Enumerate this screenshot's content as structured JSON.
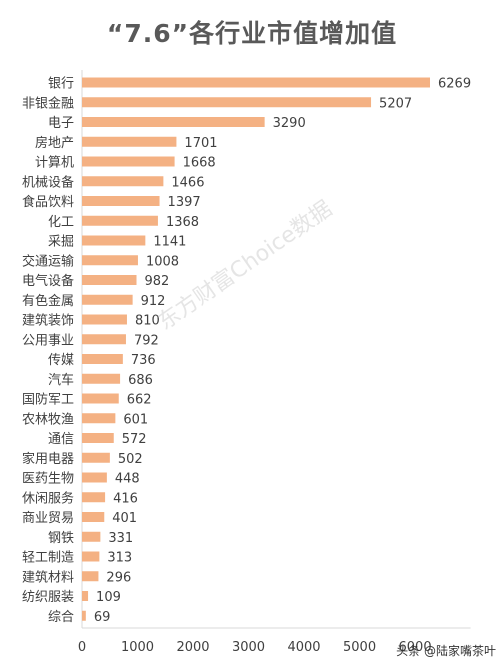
{
  "title": "“7.6”各行业市值增加值",
  "watermark": "东方财富Choice数据",
  "footer": "头条 @陆家嘴茶叶",
  "bar_color": "#f4b183",
  "chart_data": {
    "type": "bar",
    "orientation": "horizontal",
    "title": "“7.6”各行业市值增加值",
    "categories": [
      "银行",
      "非银金融",
      "电子",
      "房地产",
      "计算机",
      "机械设备",
      "食品饮料",
      "化工",
      "采掘",
      "交通运输",
      "电气设备",
      "有色金属",
      "建筑装饰",
      "公用事业",
      "传媒",
      "汽车",
      "国防军工",
      "农林牧渔",
      "通信",
      "家用电器",
      "医药生物",
      "休闲服务",
      "商业贸易",
      "钢铁",
      "轻工制造",
      "建筑材料",
      "纺织服装",
      "综合"
    ],
    "values": [
      6269,
      5207,
      3290,
      1701,
      1668,
      1466,
      1397,
      1368,
      1141,
      1008,
      982,
      912,
      810,
      792,
      736,
      686,
      662,
      601,
      572,
      502,
      448,
      416,
      401,
      331,
      313,
      296,
      109,
      69
    ],
    "xlim": [
      0,
      7000
    ],
    "xticks": [
      0,
      1000,
      2000,
      3000,
      4000,
      5000,
      6000
    ],
    "grid": false
  }
}
